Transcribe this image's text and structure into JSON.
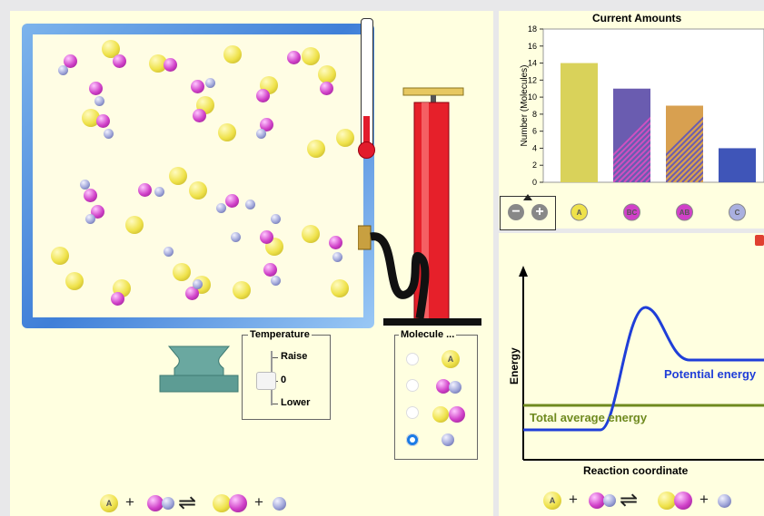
{
  "left": {
    "temperature": {
      "title": "Temperature",
      "raise": "Raise",
      "zero": "0",
      "lower": "Lower"
    },
    "molecule_panel": {
      "title": "Molecule ...",
      "selected_index": 3
    },
    "equation": {
      "a": "A",
      "bc": "BC",
      "ab": "AB",
      "c": "C",
      "plus": "+",
      "arrow": "⇌"
    }
  },
  "chart_data": {
    "type": "bar",
    "title": "Current Amounts",
    "ylabel": "Number (Molecules)",
    "ylim": [
      0,
      18
    ],
    "yticks": [
      0,
      2,
      4,
      6,
      8,
      10,
      12,
      14,
      16,
      18
    ],
    "categories": [
      "A",
      "BC",
      "AB",
      "C"
    ],
    "values": [
      14,
      11,
      9,
      4
    ],
    "colors": [
      "#d9d25a",
      "#6a5cb0",
      "#d8a050",
      "#3f55b8"
    ]
  },
  "energy": {
    "ylabel": "Energy",
    "xlabel": "Reaction coordinate",
    "potential_label": "Potential energy",
    "total_label": "Total average energy",
    "potential_color": "#1f3ed8",
    "total_color": "#6f8a1f"
  },
  "right_equation": {
    "a": "A",
    "bc": "BC",
    "ab": "AB",
    "c": "C",
    "plus": "+",
    "arrow": "⇌"
  }
}
